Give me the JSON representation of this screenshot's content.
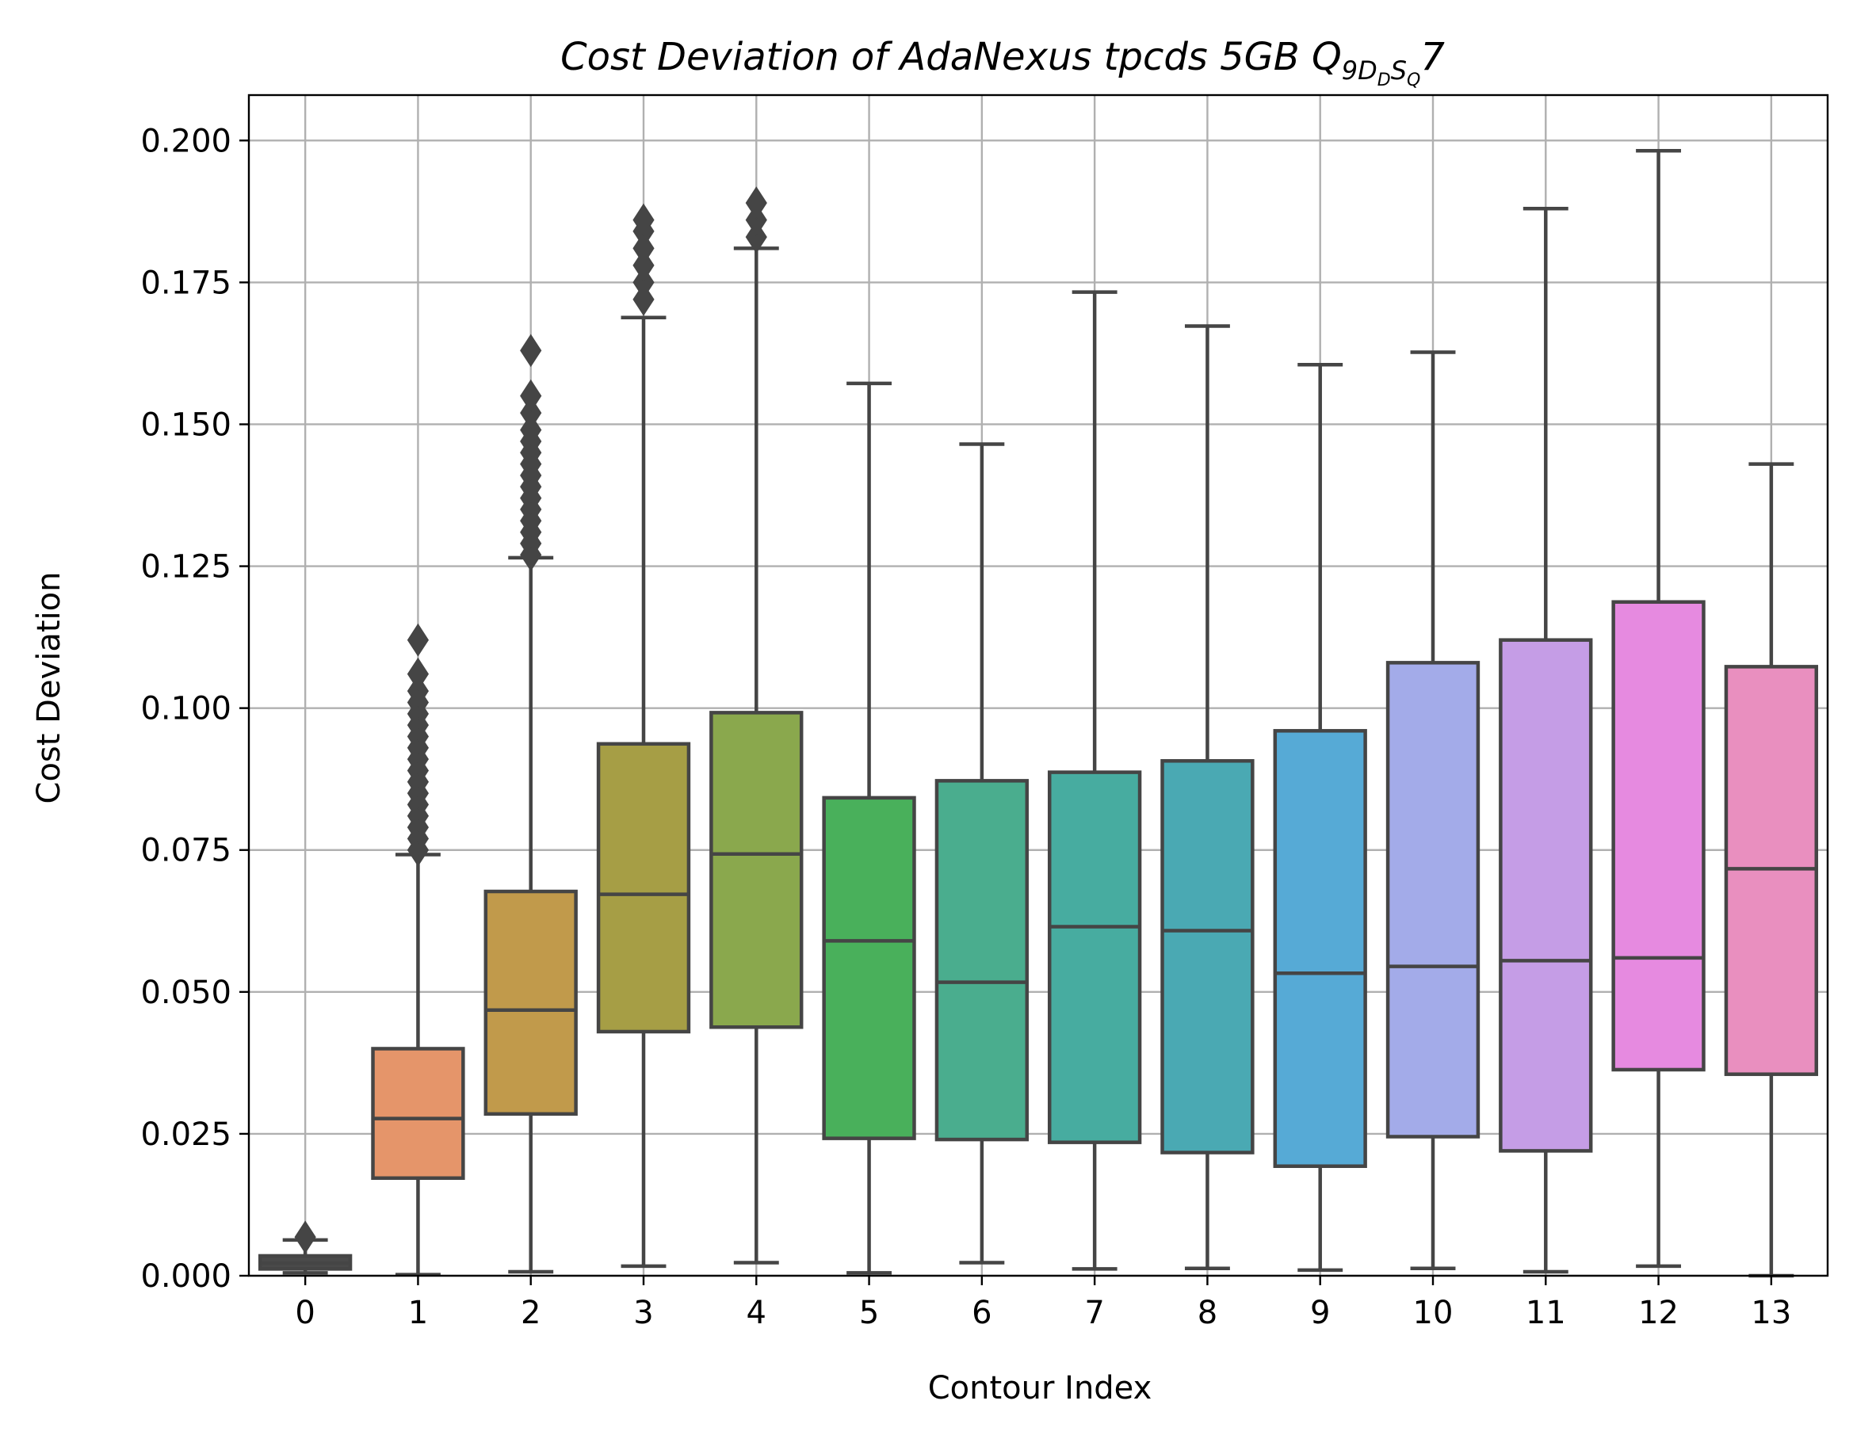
{
  "chart_data": {
    "type": "box",
    "title": {
      "main": "Cost Deviation of AdaNexus tpcds  5GB  Q",
      "sub1": "9D",
      "sub2": "D",
      "sub3": "S",
      "sub4": "Q",
      "tail": "7"
    },
    "xlabel": "Contour Index",
    "ylabel": "Cost Deviation",
    "ylim": [
      0,
      0.208
    ],
    "yticks": [
      0.0,
      0.025,
      0.05,
      0.075,
      0.1,
      0.125,
      0.15,
      0.175,
      0.2
    ],
    "ytick_labels": [
      "0.000",
      "0.025",
      "0.050",
      "0.075",
      "0.100",
      "0.125",
      "0.150",
      "0.175",
      "0.200"
    ],
    "categories": [
      "0",
      "1",
      "2",
      "3",
      "4",
      "5",
      "6",
      "7",
      "8",
      "9",
      "10",
      "11",
      "12",
      "13"
    ],
    "grid": true,
    "boxes": [
      {
        "category": "0",
        "color": "#4a4a4a",
        "whisker_low": 0.0005,
        "q1": 0.0012,
        "median": 0.0022,
        "q3": 0.0035,
        "whisker_high": 0.0063,
        "outliers": [
          0.0068
        ]
      },
      {
        "category": "1",
        "color": "#e5956a",
        "whisker_low": 0.0002,
        "q1": 0.0172,
        "median": 0.0277,
        "q3": 0.04,
        "whisker_high": 0.0742,
        "outliers": [
          0.075,
          0.077,
          0.079,
          0.081,
          0.083,
          0.085,
          0.087,
          0.089,
          0.091,
          0.093,
          0.095,
          0.097,
          0.099,
          0.101,
          0.103,
          0.106,
          0.112
        ]
      },
      {
        "category": "2",
        "color": "#c19a4b",
        "whisker_low": 0.0007,
        "q1": 0.0285,
        "median": 0.0468,
        "q3": 0.0677,
        "whisker_high": 0.1265,
        "outliers": [
          0.127,
          0.129,
          0.131,
          0.133,
          0.135,
          0.137,
          0.139,
          0.141,
          0.143,
          0.145,
          0.147,
          0.149,
          0.152,
          0.155,
          0.163
        ]
      },
      {
        "category": "3",
        "color": "#a69e45",
        "whisker_low": 0.0017,
        "q1": 0.043,
        "median": 0.0672,
        "q3": 0.0937,
        "whisker_high": 0.1688,
        "outliers": [
          0.172,
          0.175,
          0.178,
          0.181,
          0.184,
          0.186
        ]
      },
      {
        "category": "4",
        "color": "#8aa84d",
        "whisker_low": 0.0023,
        "q1": 0.0438,
        "median": 0.0743,
        "q3": 0.0992,
        "whisker_high": 0.181,
        "outliers": [
          0.183,
          0.186,
          0.189
        ]
      },
      {
        "category": "5",
        "color": "#49b05b",
        "whisker_low": 0.0005,
        "q1": 0.0242,
        "median": 0.059,
        "q3": 0.0842,
        "whisker_high": 0.1572,
        "outliers": []
      },
      {
        "category": "6",
        "color": "#4aad8e",
        "whisker_low": 0.0023,
        "q1": 0.024,
        "median": 0.0517,
        "q3": 0.0872,
        "whisker_high": 0.1465,
        "outliers": []
      },
      {
        "category": "7",
        "color": "#47aca0",
        "whisker_low": 0.0012,
        "q1": 0.0235,
        "median": 0.0615,
        "q3": 0.0887,
        "whisker_high": 0.1733,
        "outliers": []
      },
      {
        "category": "8",
        "color": "#4aa9b3",
        "whisker_low": 0.0013,
        "q1": 0.0217,
        "median": 0.0608,
        "q3": 0.0907,
        "whisker_high": 0.1673,
        "outliers": []
      },
      {
        "category": "9",
        "color": "#56aad6",
        "whisker_low": 0.001,
        "q1": 0.0193,
        "median": 0.0533,
        "q3": 0.096,
        "whisker_high": 0.1605,
        "outliers": []
      },
      {
        "category": "10",
        "color": "#a3abe9",
        "whisker_low": 0.0013,
        "q1": 0.0245,
        "median": 0.0545,
        "q3": 0.108,
        "whisker_high": 0.1627,
        "outliers": []
      },
      {
        "category": "11",
        "color": "#c59de6",
        "whisker_low": 0.0007,
        "q1": 0.022,
        "median": 0.0555,
        "q3": 0.112,
        "whisker_high": 0.188,
        "outliers": []
      },
      {
        "category": "12",
        "color": "#e68ae0",
        "whisker_low": 0.0017,
        "q1": 0.0363,
        "median": 0.056,
        "q3": 0.1187,
        "whisker_high": 0.1982,
        "outliers": []
      },
      {
        "category": "13",
        "color": "#e98fbf",
        "whisker_low": 0.0,
        "q1": 0.0355,
        "median": 0.0717,
        "q3": 0.1073,
        "whisker_high": 0.143,
        "outliers": []
      }
    ]
  }
}
